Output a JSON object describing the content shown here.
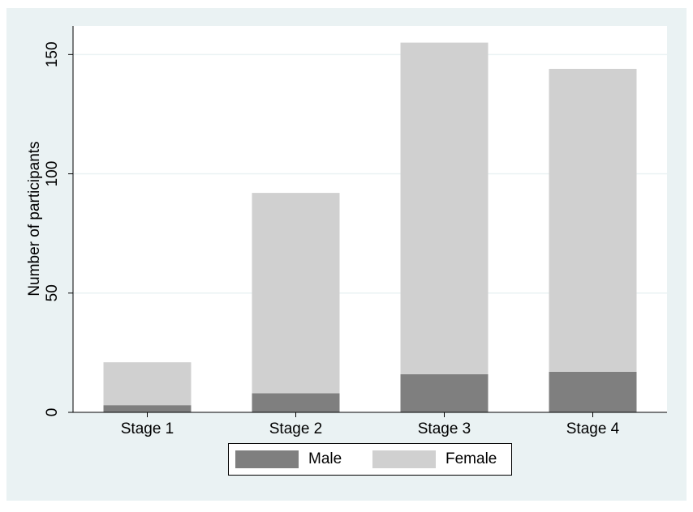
{
  "chart_data": {
    "type": "bar",
    "stacked": true,
    "categories": [
      "Stage 1",
      "Stage 2",
      "Stage 3",
      "Stage 4"
    ],
    "series": [
      {
        "name": "Male",
        "values": [
          3,
          8,
          16,
          17
        ],
        "color": "#7f7f7f"
      },
      {
        "name": "Female",
        "values": [
          18,
          84,
          139,
          127
        ],
        "color": "#d0d0d0"
      }
    ],
    "ylabel": "Number of participants",
    "ylim": [
      0,
      162
    ],
    "yticks": [
      "0",
      "50",
      "100",
      "150"
    ],
    "grid": true,
    "legend_position": "bottom"
  },
  "colors": {
    "frame_background": "#eaf2f3",
    "plot_background": "#ffffff",
    "grid": "#eaf2f3",
    "axis": "#000000"
  }
}
